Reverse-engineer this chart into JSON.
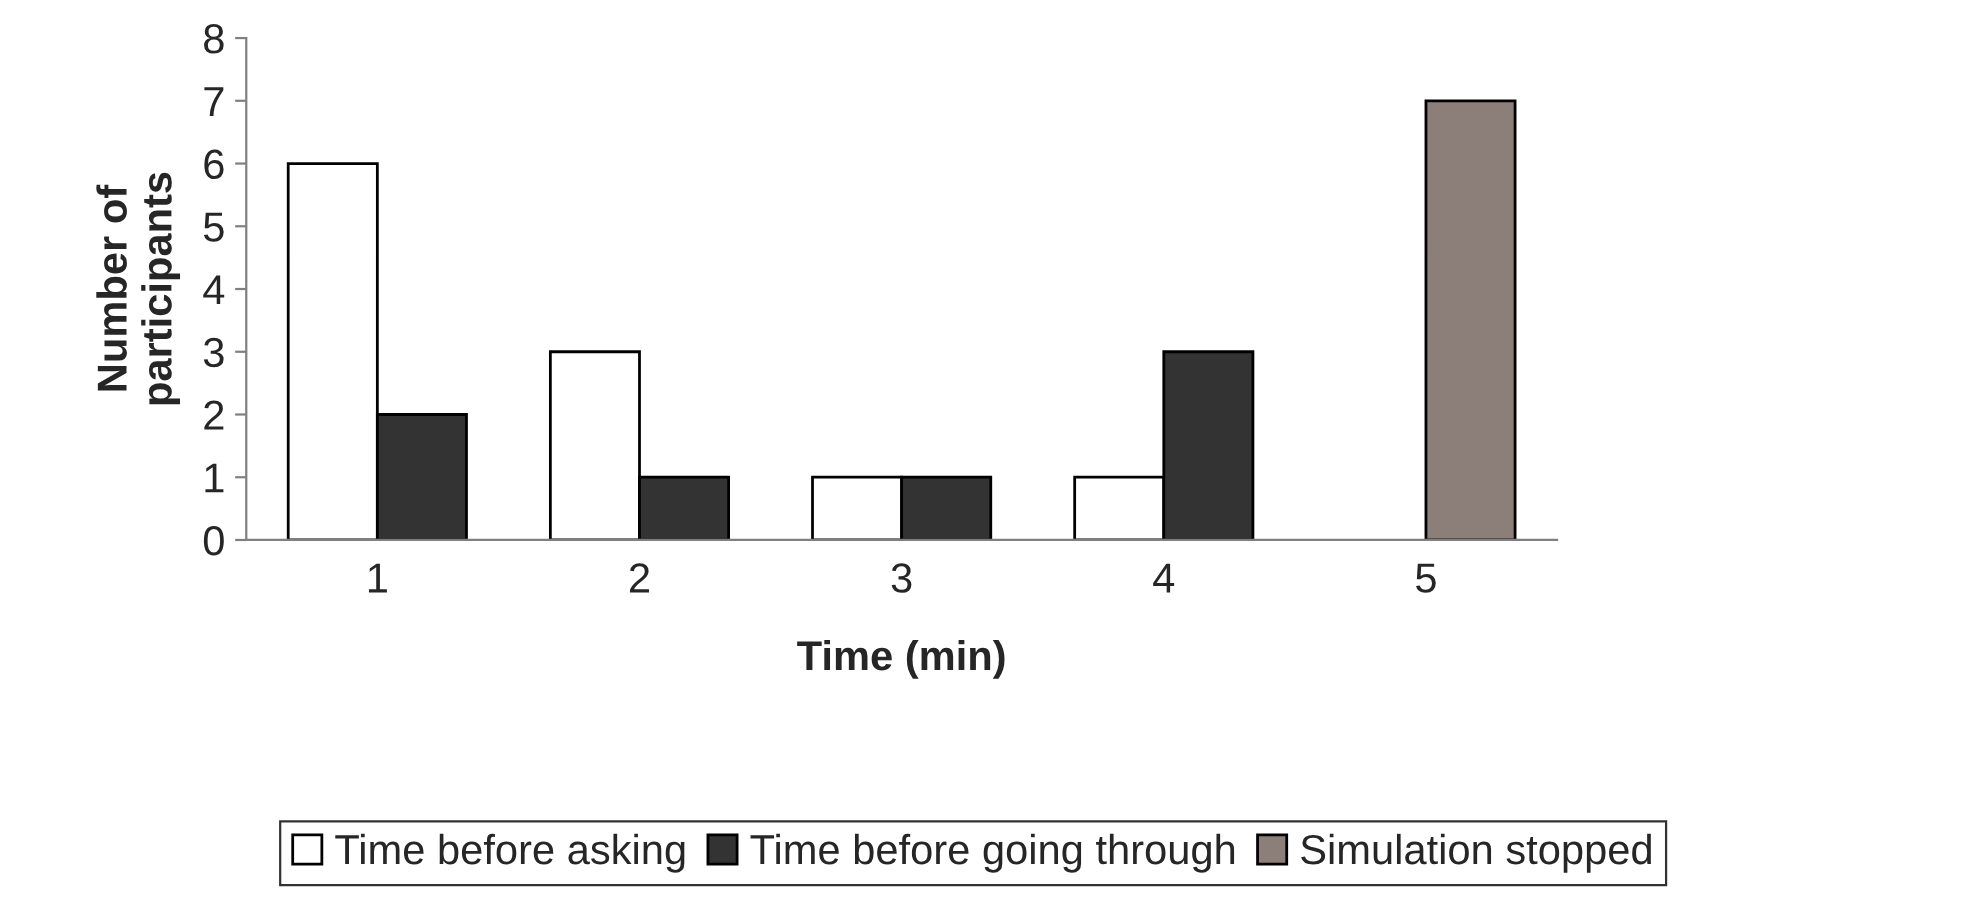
{
  "chart_data": {
    "type": "bar",
    "xlabel": "Time (min)",
    "ylabel": "Number of\nparticipants",
    "categories": [
      "1",
      "2",
      "3",
      "4",
      "5"
    ],
    "series": [
      {
        "name": "Time before asking",
        "color": "#ffffff",
        "values": [
          6,
          3,
          1,
          1,
          null
        ]
      },
      {
        "name": "Time before going through",
        "color": "#333333",
        "values": [
          2,
          1,
          1,
          3,
          null
        ]
      },
      {
        "name": "Simulation stopped",
        "color": "#8c7f7a",
        "values": [
          null,
          null,
          null,
          null,
          7
        ]
      }
    ],
    "ylim": [
      0,
      8
    ],
    "yticks": [
      0,
      1,
      2,
      3,
      4,
      5,
      6,
      7,
      8
    ],
    "grid": false,
    "legend": "bottom"
  }
}
